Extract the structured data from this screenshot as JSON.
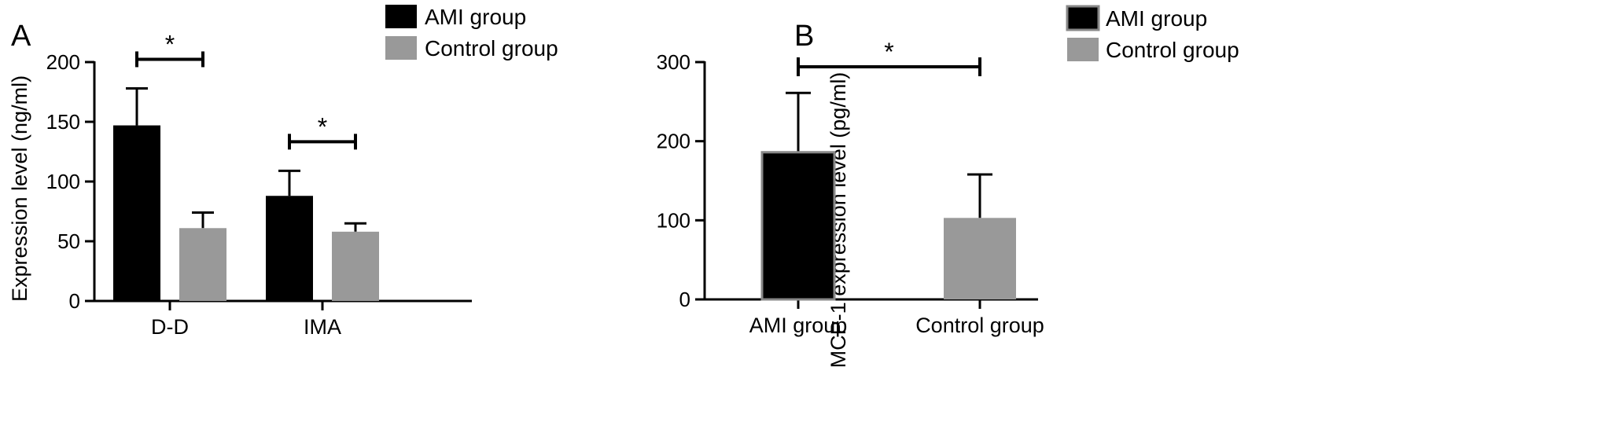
{
  "chart_data": [
    {
      "panel": "A",
      "type": "bar",
      "ylabel": "Expression level (ng/ml)",
      "ylim": [
        0,
        200
      ],
      "yticks": [
        0,
        50,
        100,
        150,
        200
      ],
      "categories": [
        "D-D",
        "IMA"
      ],
      "series": [
        {
          "name": "AMI group",
          "color": "#000000",
          "values": [
            147,
            88
          ],
          "errors": [
            31,
            21
          ]
        },
        {
          "name": "Control group",
          "color": "#999999",
          "values": [
            61,
            58
          ],
          "errors": [
            13,
            7
          ]
        }
      ],
      "significance": [
        {
          "category": "D-D",
          "label": "*"
        },
        {
          "category": "IMA",
          "label": "*"
        }
      ],
      "legend_position": "top-right",
      "error_bars": "one-sided (upper)"
    },
    {
      "panel": "B",
      "type": "bar",
      "ylabel": "MCP-1 expression level (pg/ml)",
      "ylim": [
        0,
        300
      ],
      "yticks": [
        0,
        100,
        200,
        300
      ],
      "categories": [
        "AMI group",
        "Control group"
      ],
      "values": [
        186,
        103
      ],
      "errors": [
        75,
        55
      ],
      "colors": [
        "#000000",
        "#999999"
      ],
      "legend": [
        {
          "name": "AMI group",
          "color": "#000000"
        },
        {
          "name": "Control group",
          "color": "#999999"
        }
      ],
      "significance": [
        {
          "between": [
            "AMI group",
            "Control group"
          ],
          "label": "*"
        }
      ],
      "legend_position": "top-right",
      "error_bars": "one-sided (upper)"
    }
  ]
}
